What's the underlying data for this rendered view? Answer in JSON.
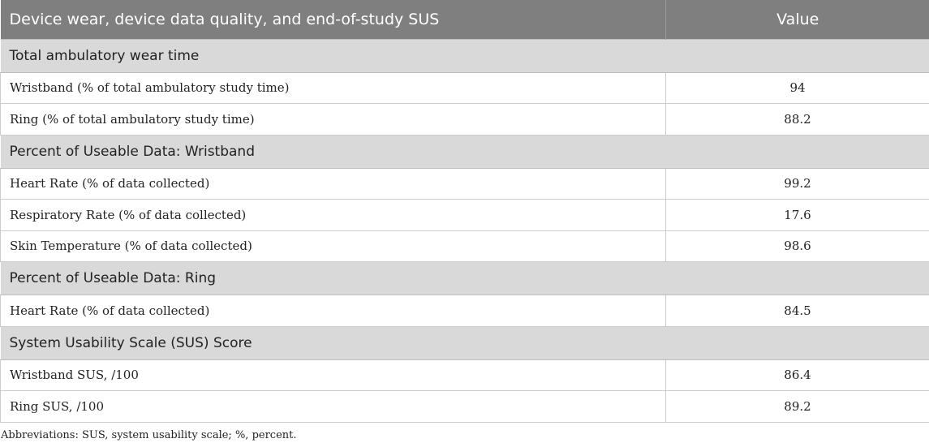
{
  "table": {
    "header": {
      "col1": "Device wear, device data quality, and end-of-study SUS",
      "col2": "Value"
    },
    "sections": [
      {
        "title": "Total ambulatory wear time",
        "rows": [
          {
            "label": "Wristband (% of total ambulatory study time)",
            "value": "94"
          },
          {
            "label": "Ring (% of total ambulatory study time)",
            "value": "88.2"
          }
        ]
      },
      {
        "title": "Percent of Useable Data: Wristband",
        "rows": [
          {
            "label": "Heart Rate (% of data collected)",
            "value": "99.2"
          },
          {
            "label": "Respiratory Rate (% of data collected)",
            "value": "17.6"
          },
          {
            "label": "Skin Temperature (% of data collected)",
            "value": "98.6"
          }
        ]
      },
      {
        "title": "Percent of Useable Data: Ring",
        "rows": [
          {
            "label": "Heart Rate (% of data collected)",
            "value": "84.5"
          }
        ]
      },
      {
        "title": "System Usability Scale (SUS) Score",
        "rows": [
          {
            "label": "Wristband SUS, /100",
            "value": "86.4"
          },
          {
            "label": "Ring SUS, /100",
            "value": "89.2"
          }
        ]
      }
    ]
  },
  "footnote": "Abbreviations: SUS, system usability scale; %, percent."
}
